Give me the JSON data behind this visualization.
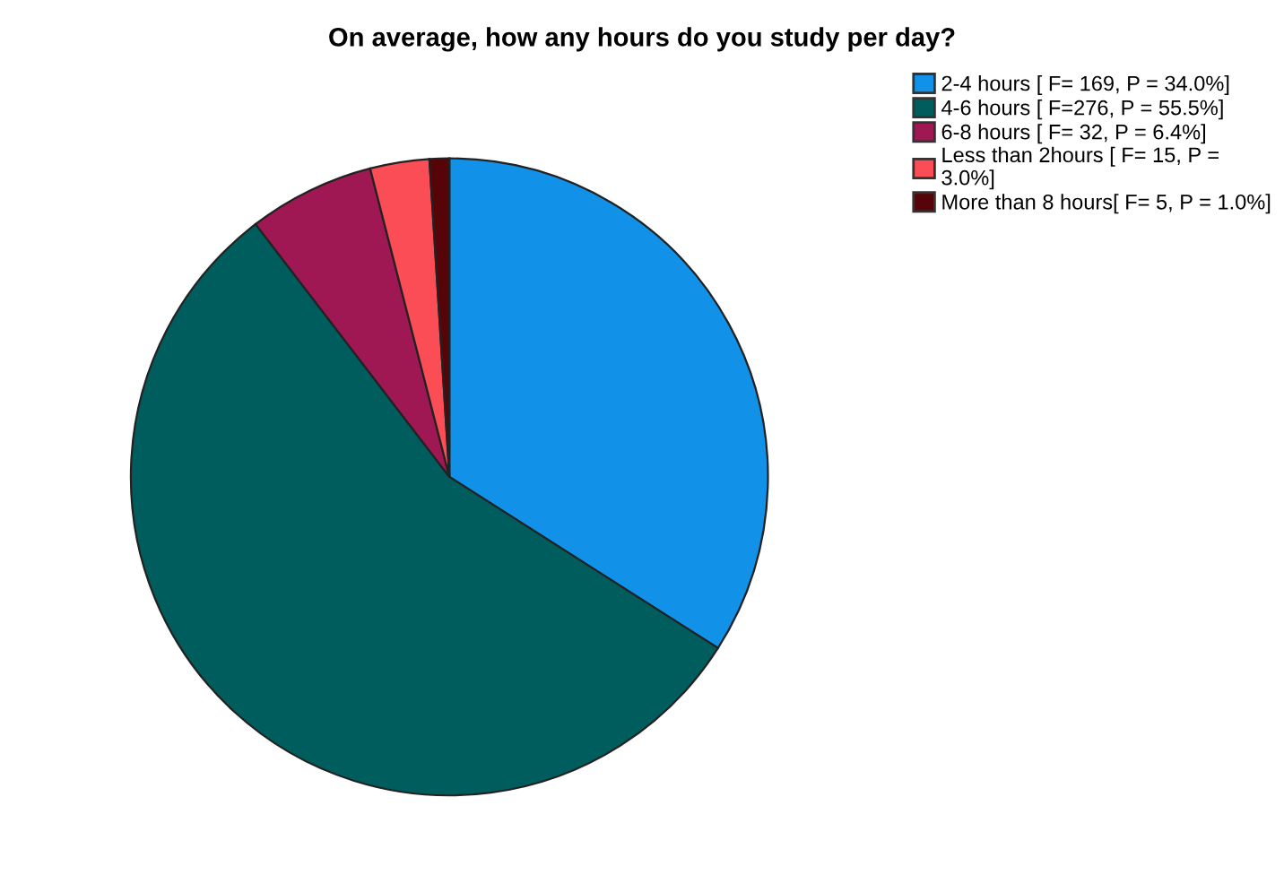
{
  "chart_data": {
    "type": "pie",
    "title": "On average, how any hours do you study per day?",
    "categories": [
      "2-4 hours [ F= 169, P = 34.0%]",
      "4-6 hours [ F=276, P = 55.5%]",
      "6-8 hours [ F= 32, P = 6.4%]",
      "Less than 2hours [ F= 15, P =\n3.0%]",
      "More than 8 hours[ F= 5, P = 1.0%]"
    ],
    "values": [
      34.0,
      55.5,
      6.4,
      3.0,
      1.0
    ],
    "colors": [
      "#1192e8",
      "#005d5d",
      "#9f1853",
      "#fa4d56",
      "#570408"
    ],
    "legend": "top right"
  }
}
